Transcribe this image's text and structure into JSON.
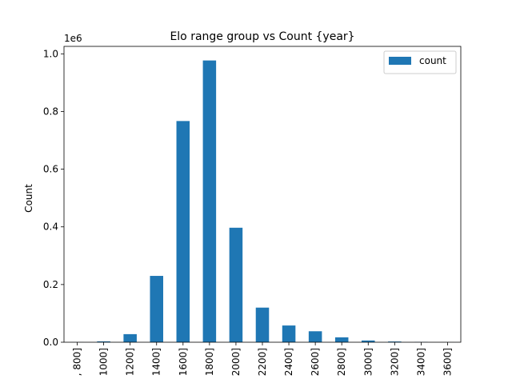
{
  "chart_data": {
    "type": "bar",
    "title": "Elo range group vs Count {year}",
    "xlabel": "",
    "ylabel": "Count",
    "y_scale_label": "1e6",
    "categories": [
      ", 800]",
      "1000]",
      "1200]",
      "1400]",
      "1600]",
      "1800]",
      "2000]",
      "2200]",
      "2400]",
      "2600]",
      "2800]",
      "3000]",
      "3200]",
      "3400]",
      "3600]"
    ],
    "series": [
      {
        "name": "count",
        "color": "#1f77b4",
        "values": [
          300,
          3000,
          28000,
          230000,
          767000,
          977000,
          397000,
          120000,
          58000,
          38000,
          17000,
          6000,
          2500,
          800,
          200
        ]
      }
    ],
    "ylim": [
      0,
      1025850
    ],
    "yticks": [
      0,
      200000,
      400000,
      600000,
      800000,
      1000000
    ],
    "ytick_labels": [
      "0.0",
      "0.2",
      "0.4",
      "0.6",
      "0.8",
      "1.0"
    ],
    "legend_position": "top-right",
    "grid": false
  }
}
